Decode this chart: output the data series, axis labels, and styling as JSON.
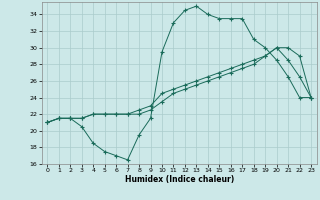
{
  "title": "",
  "xlabel": "Humidex (Indice chaleur)",
  "bg_color": "#cce8e8",
  "grid_color": "#aacccc",
  "line_color": "#1a6b5a",
  "xlim": [
    -0.5,
    23.5
  ],
  "ylim": [
    16,
    35.5
  ],
  "xticks": [
    0,
    1,
    2,
    3,
    4,
    5,
    6,
    7,
    8,
    9,
    10,
    11,
    12,
    13,
    14,
    15,
    16,
    17,
    18,
    19,
    20,
    21,
    22,
    23
  ],
  "yticks": [
    16,
    18,
    20,
    22,
    24,
    26,
    28,
    30,
    32,
    34
  ],
  "line1_x": [
    0,
    1,
    2,
    3,
    4,
    5,
    6,
    7,
    8,
    9,
    10,
    11,
    12,
    13,
    14,
    15,
    16,
    17,
    18,
    19,
    20,
    21,
    22,
    23
  ],
  "line1_y": [
    21,
    21.5,
    21.5,
    20.5,
    18.5,
    17.5,
    17,
    16.5,
    19.5,
    21.5,
    29.5,
    33,
    34.5,
    35,
    34,
    33.5,
    33.5,
    33.5,
    31,
    30,
    28.5,
    26.5,
    24,
    24
  ],
  "line2_x": [
    0,
    1,
    2,
    3,
    4,
    5,
    6,
    7,
    8,
    9,
    10,
    11,
    12,
    13,
    14,
    15,
    16,
    17,
    18,
    19,
    20,
    21,
    22,
    23
  ],
  "line2_y": [
    21,
    21.5,
    21.5,
    21.5,
    22,
    22,
    22,
    22,
    22.5,
    23,
    24.5,
    25,
    25.5,
    26,
    26.5,
    27,
    27.5,
    28,
    28.5,
    29,
    30,
    28.5,
    26.5,
    24
  ],
  "line3_x": [
    0,
    1,
    2,
    3,
    4,
    5,
    6,
    7,
    8,
    9,
    10,
    11,
    12,
    13,
    14,
    15,
    16,
    17,
    18,
    19,
    20,
    21,
    22,
    23
  ],
  "line3_y": [
    21,
    21.5,
    21.5,
    21.5,
    22,
    22,
    22,
    22,
    22,
    22.5,
    23.5,
    24.5,
    25,
    25.5,
    26,
    26.5,
    27,
    27.5,
    28,
    29,
    30,
    30,
    29,
    24
  ]
}
